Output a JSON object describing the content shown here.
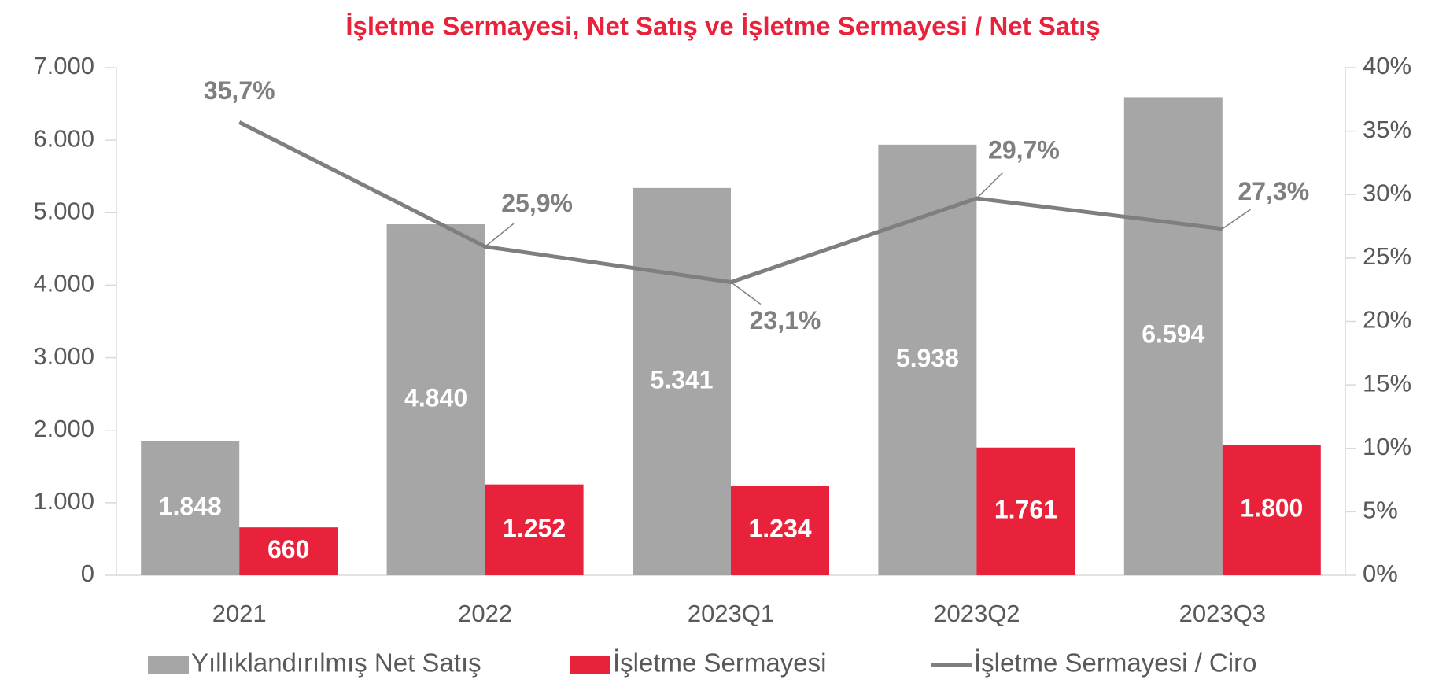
{
  "chart_data": {
    "type": "bar-line",
    "title": "İşletme Sermayesi, Net Satış ve İşletme Sermayesi / Net Satış",
    "categories": [
      "2021",
      "2022",
      "2023Q1",
      "2023Q2",
      "2023Q3"
    ],
    "series": [
      {
        "name": "Yıllıklandırılmış Net Satış",
        "color": "#a6a6a6",
        "type": "bar",
        "values": [
          1848,
          4840,
          5341,
          5938,
          6594
        ],
        "value_labels": [
          "1.848",
          "4.840",
          "5.341",
          "5.938",
          "6.594"
        ]
      },
      {
        "name": "İşletme Sermayesi",
        "color": "#e8223a",
        "type": "bar",
        "values": [
          660,
          1252,
          1234,
          1761,
          1800
        ],
        "value_labels": [
          "660",
          "1.252",
          "1.234",
          "1.761",
          "1.800"
        ]
      },
      {
        "name": "İşletme Sermayesi / Ciro",
        "color": "#7f7f7f",
        "type": "line",
        "axis": "y2",
        "values": [
          35.7,
          25.9,
          23.1,
          29.7,
          27.3
        ],
        "value_labels": [
          "35,7%",
          "25,9%",
          "23,1%",
          "29,7%",
          "27,3%"
        ]
      }
    ],
    "ylim": [
      0,
      7000
    ],
    "yticks": [
      0,
      {
        "value": 1000,
        "label": "1.000"
      },
      {
        "value": 2000,
        "label": "2.000"
      },
      {
        "value": 3000,
        "label": "3.000"
      },
      {
        "value": 4000,
        "label": "4.000"
      },
      {
        "value": 5000,
        "label": "5.000"
      },
      {
        "value": 6000,
        "label": "6.000"
      },
      {
        "value": 7000,
        "label": "7.000"
      }
    ],
    "y2lim": [
      0,
      40
    ],
    "y2ticks": [
      {
        "value": 0,
        "label": "0%"
      },
      {
        "value": 5,
        "label": "5%"
      },
      {
        "value": 10,
        "label": "10%"
      },
      {
        "value": 15,
        "label": "15%"
      },
      {
        "value": 20,
        "label": "20%"
      },
      {
        "value": 25,
        "label": "25%"
      },
      {
        "value": 30,
        "label": "30%"
      },
      {
        "value": 35,
        "label": "35%"
      },
      {
        "value": 40,
        "label": "40%"
      }
    ],
    "legend": "bottom"
  }
}
